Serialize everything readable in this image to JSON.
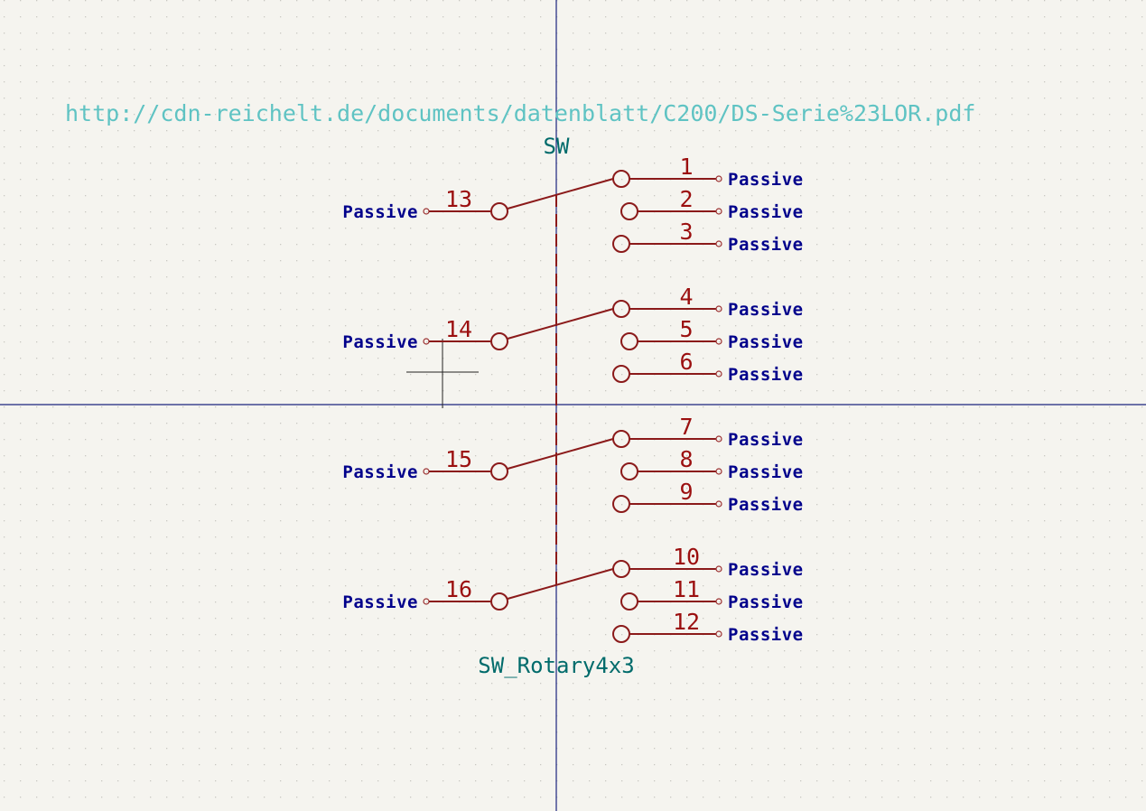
{
  "symbol": {
    "datasheet": "http://cdn-reichelt.de/documents/datenblatt/C200/DS-Serie%23LOR.pdf",
    "reference": "SW",
    "value": "SW_Rotary4x3"
  },
  "pin_type_label": "Passive",
  "groups": [
    {
      "common": "13",
      "outputs": [
        "1",
        "2",
        "3"
      ]
    },
    {
      "common": "14",
      "outputs": [
        "4",
        "5",
        "6"
      ]
    },
    {
      "common": "15",
      "outputs": [
        "7",
        "8",
        "9"
      ]
    },
    {
      "common": "16",
      "outputs": [
        "10",
        "11",
        "12"
      ]
    }
  ],
  "colors": {
    "background": "#f5f4ef",
    "grid_dot": "#c9c8c2",
    "symbol_body": "#8b1a1a",
    "pin_number": "#9b0f0f",
    "pin_type": "#00008b",
    "field_text": "#006b6b",
    "datasheet_text": "#5fc3c3",
    "axis": "#1a237e"
  }
}
